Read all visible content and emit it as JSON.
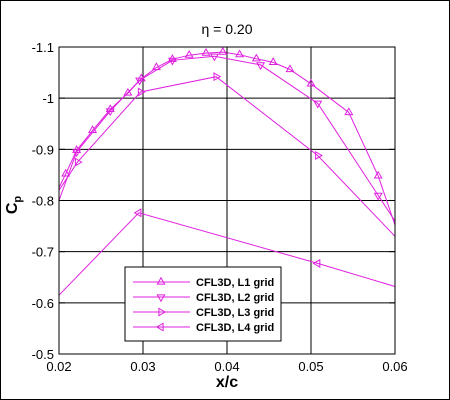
{
  "chart_data": {
    "type": "line",
    "title": "η = 0.20",
    "xlabel": "x/c",
    "ylabel_main": "C",
    "ylabel_sub": "p",
    "xlim": [
      0.02,
      0.06
    ],
    "ylim": [
      -0.5,
      -1.1
    ],
    "y_inverted": true,
    "grid": true,
    "legend_position": "bottom-left inside plot",
    "x_ticks": [
      {
        "value": 0.02,
        "label": "0.02"
      },
      {
        "value": 0.03,
        "label": "0.03"
      },
      {
        "value": 0.04,
        "label": "0.04"
      },
      {
        "value": 0.05,
        "label": "0.05"
      },
      {
        "value": 0.06,
        "label": "0.06"
      }
    ],
    "y_ticks": [
      {
        "value": -0.5,
        "label": "-0.5"
      },
      {
        "value": -0.6,
        "label": "-0.6"
      },
      {
        "value": -0.7,
        "label": "-0.7"
      },
      {
        "value": -0.8,
        "label": "-0.8"
      },
      {
        "value": -0.9,
        "label": "-0.9"
      },
      {
        "value": -1.0,
        "label": "-1"
      },
      {
        "value": -1.1,
        "label": "-1.1"
      }
    ],
    "line_color": "#e020e0",
    "series": [
      {
        "name": "CFL3D, L1 grid",
        "marker": "triangle-up",
        "x": [
          0.02,
          0.0208,
          0.0221,
          0.024,
          0.0261,
          0.0282,
          0.0298,
          0.0316,
          0.0335,
          0.0355,
          0.0375,
          0.0395,
          0.0415,
          0.0435,
          0.0455,
          0.0475,
          0.05,
          0.0545,
          0.058,
          0.06
        ],
        "y": [
          -0.825,
          -0.852,
          -0.898,
          -0.937,
          -0.978,
          -1.01,
          -1.038,
          -1.06,
          -1.076,
          -1.084,
          -1.088,
          -1.09,
          -1.085,
          -1.077,
          -1.07,
          -1.056,
          -1.028,
          -0.972,
          -0.848,
          -0.752
        ]
      },
      {
        "name": "CFL3D, L2 grid",
        "marker": "triangle-down",
        "x": [
          0.02,
          0.0221,
          0.0261,
          0.0296,
          0.0335,
          0.0385,
          0.044,
          0.0508,
          0.058,
          0.06
        ],
        "y": [
          -0.8,
          -0.895,
          -0.975,
          -1.035,
          -1.074,
          -1.082,
          -1.065,
          -0.99,
          -0.81,
          -0.76
        ]
      },
      {
        "name": "CFL3D, L3 grid",
        "marker": "triangle-right",
        "x": [
          0.02,
          0.0222,
          0.0297,
          0.0387,
          0.0508,
          0.06
        ],
        "y": [
          -0.82,
          -0.875,
          -1.012,
          -1.042,
          -0.888,
          -0.73
        ]
      },
      {
        "name": "CFL3D, L4 grid",
        "marker": "triangle-left",
        "x": [
          0.02,
          0.0295,
          0.0508,
          0.06
        ],
        "y": [
          -0.615,
          -0.776,
          -0.677,
          -0.632
        ]
      }
    ]
  }
}
